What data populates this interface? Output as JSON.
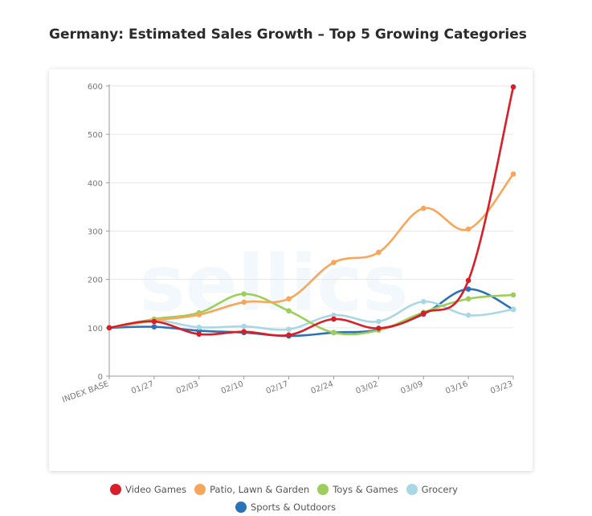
{
  "chart_data": {
    "type": "line",
    "title": "Germany: Estimated Sales Growth – Top 5 Growing Categories",
    "xlabel": "",
    "ylabel": "",
    "categories": [
      "INDEX BASE",
      "01/27",
      "02/03",
      "02/10",
      "02/17",
      "02/24",
      "03/02",
      "03/09",
      "03/16",
      "03/23"
    ],
    "yticks": [
      0,
      100,
      200,
      300,
      400,
      500,
      600
    ],
    "ylim": [
      0,
      600
    ],
    "grid": true,
    "legend_position": "bottom",
    "series": [
      {
        "name": "Video Games",
        "color": "#d81e28",
        "values": [
          100,
          113,
          87,
          92,
          85,
          118,
          99,
          130,
          198,
          598
        ]
      },
      {
        "name": "Patio, Lawn & Garden",
        "color": "#f7a65a",
        "values": [
          100,
          115,
          127,
          153,
          160,
          235,
          256,
          347,
          304,
          418
        ]
      },
      {
        "name": "Toys & Games",
        "color": "#9ccf5a",
        "values": [
          100,
          118,
          131,
          170,
          135,
          90,
          95,
          132,
          160,
          168
        ]
      },
      {
        "name": "Grocery",
        "color": "#a8d8e3",
        "values": [
          100,
          115,
          101,
          103,
          97,
          126,
          113,
          154,
          126,
          138
        ]
      },
      {
        "name": "Sports & Outdoors",
        "color": "#2b73b6",
        "values": [
          100,
          102,
          94,
          90,
          83,
          90,
          96,
          128,
          180,
          138
        ]
      }
    ]
  }
}
